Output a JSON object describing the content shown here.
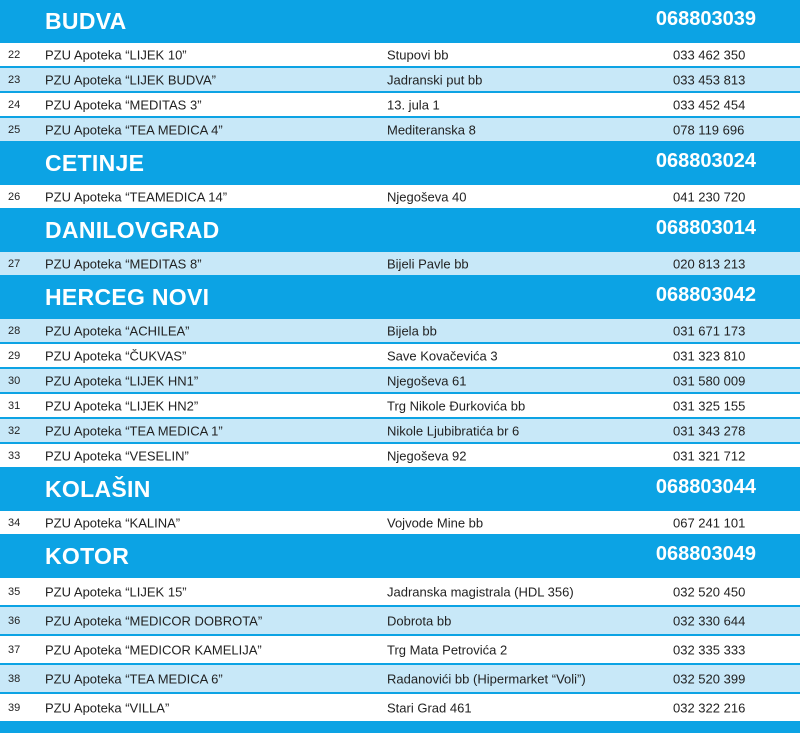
{
  "sections": [
    {
      "city": "BUDVA",
      "hotline": "068803039",
      "rows": [
        {
          "no": "22",
          "name": "PZU Apoteka “LIJEK 10”",
          "address": "Stupovi bb",
          "phone": "033 462 350",
          "shaded": false
        },
        {
          "no": "23",
          "name": "PZU Apoteka “LIJEK BUDVA”",
          "address": "Jadranski put bb",
          "phone": "033 453 813",
          "shaded": true
        },
        {
          "no": "24",
          "name": "PZU Apoteka “MEDITAS 3”",
          "address": "13. jula 1",
          "phone": "033 452 454",
          "shaded": false
        },
        {
          "no": "25",
          "name": "PZU Apoteka “TEA MEDICA 4”",
          "address": "Mediteranska 8",
          "phone": "078 119 696",
          "shaded": true
        }
      ]
    },
    {
      "city": "CETINJE",
      "hotline": "068803024",
      "rows": [
        {
          "no": "26",
          "name": "PZU Apoteka “TEAMEDICA 14”",
          "address": "Njegoševa 40",
          "phone": "041 230 720",
          "shaded": false
        }
      ]
    },
    {
      "city": "DANILOVGRAD",
      "hotline": "068803014",
      "rows": [
        {
          "no": "27",
          "name": "PZU Apoteka “MEDITAS 8”",
          "address": "Bijeli Pavle bb",
          "phone": "020 813 213",
          "shaded": true
        }
      ]
    },
    {
      "city": "HERCEG NOVI",
      "hotline": "068803042",
      "rows": [
        {
          "no": "28",
          "name": "PZU Apoteka “ACHILEA”",
          "address": "Bijela bb",
          "phone": "031 671 173",
          "shaded": true
        },
        {
          "no": "29",
          "name": "PZU Apoteka “ČUKVAS”",
          "address": "Save Kovačevića 3",
          "phone": "031 323 810",
          "shaded": false
        },
        {
          "no": "30",
          "name": "PZU Apoteka “LIJEK HN1”",
          "address": "Njegoševa 61",
          "phone": "031 580 009",
          "shaded": true
        },
        {
          "no": "31",
          "name": "PZU Apoteka “LIJEK HN2”",
          "address": "Trg Nikole Đurkovića bb",
          "phone": "031 325 155",
          "shaded": false
        },
        {
          "no": "32",
          "name": "PZU Apoteka “TEA MEDICA 1”",
          "address": "Nikole Ljubibratića br 6",
          "phone": "031 343 278",
          "shaded": true
        },
        {
          "no": "33",
          "name": "PZU Apoteka “VESELIN”",
          "address": "Njegoševa 92",
          "phone": "031 321 712",
          "shaded": false
        }
      ]
    },
    {
      "city": "KOLAŠIN",
      "hotline": "068803044",
      "rows": [
        {
          "no": "34",
          "name": "PZU Apoteka “KALINA”",
          "address": "Vojvode Mine bb",
          "phone": "067 241 101",
          "shaded": false
        }
      ]
    },
    {
      "city": "KOTOR",
      "hotline": "068803049",
      "tall": true,
      "rows": [
        {
          "no": "35",
          "name": "PZU Apoteka “LIJEK 15”",
          "address": "Jadranska magistrala (HDL 356)",
          "phone": "032 520 450",
          "shaded": false
        },
        {
          "no": "36",
          "name": "PZU Apoteka “MEDICOR DOBROTA”",
          "address": "Dobrota bb",
          "phone": "032 330 644",
          "shaded": true
        },
        {
          "no": "37",
          "name": "PZU Apoteka “MEDICOR KAMELIJA”",
          "address": "Trg Mata Petrovića 2",
          "phone": "032 335 333",
          "shaded": false
        },
        {
          "no": "38",
          "name": "PZU Apoteka “TEA MEDICA 6”",
          "address": "Radanovići bb (Hipermarket “Voli”)",
          "phone": "032 520 399",
          "shaded": true
        },
        {
          "no": "39",
          "name": "PZU Apoteka “VILLA”",
          "address": "Stari Grad 461",
          "phone": "032 322 216",
          "shaded": false
        }
      ]
    }
  ]
}
